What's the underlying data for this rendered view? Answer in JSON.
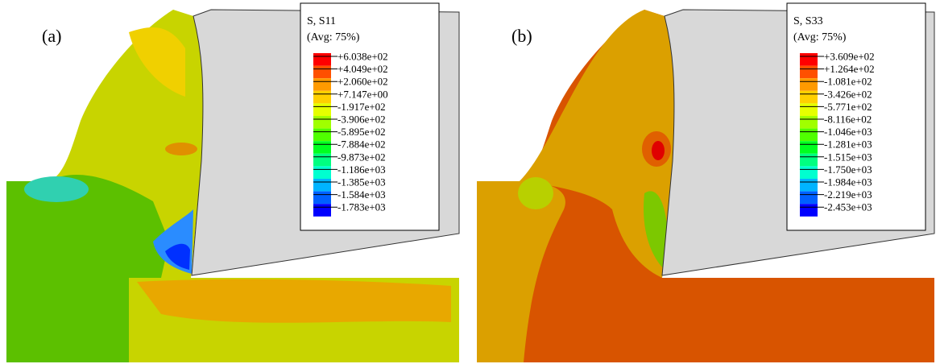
{
  "panels": [
    {
      "label": "(a)",
      "legend": {
        "title": "S, S11",
        "subtitle": "(Avg: 75%)",
        "levels": [
          "+6.038e+02",
          "+4.049e+02",
          "+2.060e+02",
          "+7.147e+00",
          "-1.917e+02",
          "-3.906e+02",
          "-5.895e+02",
          "-7.884e+02",
          "-9.873e+02",
          "-1.186e+03",
          "-1.385e+03",
          "-1.584e+03",
          "-1.783e+03"
        ]
      }
    },
    {
      "label": "(b)",
      "legend": {
        "title": "S, S33",
        "subtitle": "(Avg: 75%)",
        "levels": [
          "+3.609e+02",
          "+1.264e+02",
          "-1.081e+02",
          "-3.426e+02",
          "-5.771e+02",
          "-8.116e+02",
          "-1.046e+03",
          "-1.281e+03",
          "-1.515e+03",
          "-1.750e+03",
          "-1.984e+03",
          "-2.219e+03",
          "-2.453e+03"
        ]
      }
    }
  ]
}
